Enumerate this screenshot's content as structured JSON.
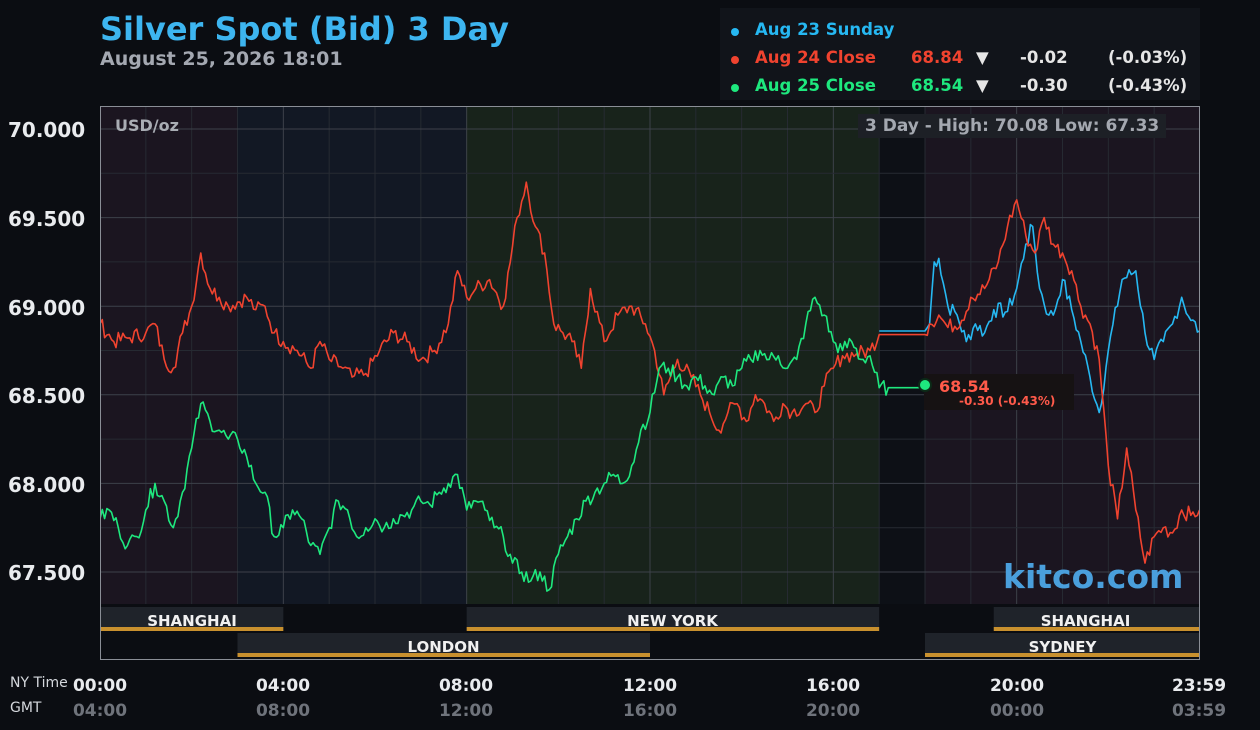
{
  "header": {
    "title": "Silver Spot (Bid) 3 Day",
    "datetime": "August 25, 2026 18:01"
  },
  "legend": [
    {
      "name": "Aug 23 Sunday",
      "price": "",
      "arrow": "",
      "change": "",
      "pct": "",
      "color": "#26b8f2"
    },
    {
      "name": "Aug 24 Close",
      "price": "68.84",
      "arrow": "▼",
      "change": "-0.02",
      "pct": "(-0.03%)",
      "color": "#f0432f"
    },
    {
      "name": "Aug 25 Close",
      "price": "68.54",
      "arrow": "▼",
      "change": "-0.30",
      "pct": "(-0.43%)",
      "color": "#1ee87e"
    }
  ],
  "plot": {
    "units": "USD/oz",
    "hilo": "3 Day - High: 70.08  Low: 67.33",
    "current_value": "68.54",
    "current_change": "-0.30 (-0.43%)",
    "watermark": "kitco.com"
  },
  "axes": {
    "y_ticks": [
      "70.000",
      "69.500",
      "69.000",
      "68.500",
      "68.000",
      "67.500"
    ],
    "x_ticks_ny": [
      "00:00",
      "04:00",
      "08:00",
      "12:00",
      "16:00",
      "20:00",
      "23:59"
    ],
    "x_ticks_gmt": [
      "04:00",
      "08:00",
      "12:00",
      "16:00",
      "20:00",
      "00:00",
      "03:59"
    ],
    "ny_label": "NY Time",
    "gmt_label": "GMT"
  },
  "sessions": [
    {
      "name": "SHANGHAI",
      "start": 0,
      "end": 4
    },
    {
      "name": "NEW YORK",
      "start": 8,
      "end": 17
    },
    {
      "name": "SHANGHAI",
      "start": 19.5,
      "end": 24
    },
    {
      "name": "LONDON",
      "start": 3,
      "end": 12
    },
    {
      "name": "SYDNEY",
      "start": 18,
      "end": 24
    }
  ],
  "colors": {
    "aug23": "#26b8f2",
    "aug24": "#f0432f",
    "aug25": "#1ee87e",
    "session_bar": "#c8902e"
  },
  "chart_data": {
    "type": "line",
    "title": "Silver Spot (Bid) 3 Day",
    "xlabel": "NY Time",
    "ylabel": "USD/oz",
    "xlim": [
      0,
      24
    ],
    "ylim": [
      67.32,
      70.08
    ],
    "series": [
      {
        "name": "Aug 23 Sunday",
        "points": [
          [
            17,
            68.86
          ],
          [
            18,
            68.86
          ],
          [
            18.1,
            68.9
          ],
          [
            18.2,
            69.25
          ],
          [
            18.3,
            69.27
          ],
          [
            18.5,
            69.0
          ],
          [
            18.7,
            68.95
          ],
          [
            18.9,
            68.8
          ],
          [
            19.1,
            68.9
          ],
          [
            19.3,
            68.85
          ],
          [
            19.5,
            68.98
          ],
          [
            19.8,
            68.97
          ],
          [
            20.0,
            69.1
          ],
          [
            20.2,
            69.35
          ],
          [
            20.35,
            69.45
          ],
          [
            20.5,
            69.1
          ],
          [
            20.7,
            68.95
          ],
          [
            20.8,
            68.95
          ],
          [
            21.0,
            69.15
          ],
          [
            21.2,
            68.98
          ],
          [
            21.4,
            68.8
          ],
          [
            21.6,
            68.6
          ],
          [
            21.8,
            68.4
          ],
          [
            22.0,
            68.75
          ],
          [
            22.3,
            69.15
          ],
          [
            22.6,
            69.2
          ],
          [
            22.8,
            68.85
          ],
          [
            23.0,
            68.7
          ],
          [
            23.2,
            68.8
          ],
          [
            23.4,
            68.9
          ],
          [
            23.6,
            69.05
          ],
          [
            23.8,
            68.92
          ],
          [
            23.99,
            68.86
          ]
        ]
      },
      {
        "name": "Aug 24 Close",
        "points": [
          [
            0,
            68.9
          ],
          [
            0.3,
            68.8
          ],
          [
            0.6,
            68.82
          ],
          [
            1.0,
            68.85
          ],
          [
            1.2,
            68.9
          ],
          [
            1.4,
            68.7
          ],
          [
            1.6,
            68.65
          ],
          [
            1.8,
            68.85
          ],
          [
            2.0,
            69.0
          ],
          [
            2.2,
            69.3
          ],
          [
            2.4,
            69.1
          ],
          [
            2.6,
            69.05
          ],
          [
            2.8,
            69.0
          ],
          [
            3.2,
            69.05
          ],
          [
            3.4,
            68.98
          ],
          [
            3.6,
            69.0
          ],
          [
            3.8,
            68.85
          ],
          [
            4.0,
            68.8
          ],
          [
            4.3,
            68.75
          ],
          [
            4.6,
            68.65
          ],
          [
            4.8,
            68.8
          ],
          [
            5.0,
            68.7
          ],
          [
            5.3,
            68.65
          ],
          [
            5.5,
            68.6
          ],
          [
            5.8,
            68.62
          ],
          [
            6.1,
            68.75
          ],
          [
            6.4,
            68.85
          ],
          [
            6.7,
            68.8
          ],
          [
            7.0,
            68.7
          ],
          [
            7.3,
            68.75
          ],
          [
            7.6,
            68.9
          ],
          [
            7.8,
            69.2
          ],
          [
            8.0,
            69.05
          ],
          [
            8.2,
            69.1
          ],
          [
            8.5,
            69.15
          ],
          [
            8.8,
            69.0
          ],
          [
            9.1,
            69.5
          ],
          [
            9.3,
            69.7
          ],
          [
            9.5,
            69.45
          ],
          [
            9.7,
            69.3
          ],
          [
            9.9,
            68.9
          ],
          [
            10.1,
            68.85
          ],
          [
            10.3,
            68.8
          ],
          [
            10.5,
            68.65
          ],
          [
            10.7,
            69.1
          ],
          [
            11.0,
            68.8
          ],
          [
            11.3,
            68.95
          ],
          [
            11.6,
            69.0
          ],
          [
            11.9,
            68.9
          ],
          [
            12.1,
            68.75
          ],
          [
            12.3,
            68.5
          ],
          [
            12.6,
            68.7
          ],
          [
            12.9,
            68.6
          ],
          [
            13.1,
            68.5
          ],
          [
            13.3,
            68.4
          ],
          [
            13.5,
            68.3
          ],
          [
            13.7,
            68.4
          ],
          [
            13.9,
            68.45
          ],
          [
            14.1,
            68.35
          ],
          [
            14.3,
            68.5
          ],
          [
            14.5,
            68.45
          ],
          [
            14.7,
            68.35
          ],
          [
            14.9,
            68.45
          ],
          [
            15.1,
            68.4
          ],
          [
            15.4,
            68.45
          ],
          [
            15.6,
            68.4
          ],
          [
            15.8,
            68.55
          ],
          [
            16.0,
            68.65
          ],
          [
            16.2,
            68.72
          ],
          [
            16.5,
            68.73
          ],
          [
            16.8,
            68.75
          ],
          [
            17.0,
            68.84
          ],
          [
            18.0,
            68.84
          ],
          [
            18.1,
            68.9
          ],
          [
            18.3,
            68.95
          ],
          [
            18.5,
            68.88
          ],
          [
            18.8,
            68.92
          ],
          [
            19.0,
            69.05
          ],
          [
            19.3,
            69.1
          ],
          [
            19.6,
            69.25
          ],
          [
            19.8,
            69.45
          ],
          [
            20.0,
            69.6
          ],
          [
            20.2,
            69.4
          ],
          [
            20.4,
            69.3
          ],
          [
            20.6,
            69.5
          ],
          [
            20.8,
            69.35
          ],
          [
            21.0,
            69.3
          ],
          [
            21.2,
            69.2
          ],
          [
            21.4,
            69.0
          ],
          [
            21.6,
            68.9
          ],
          [
            21.8,
            68.7
          ],
          [
            22.0,
            68.1
          ],
          [
            22.2,
            67.8
          ],
          [
            22.4,
            68.2
          ],
          [
            22.6,
            67.85
          ],
          [
            22.8,
            67.55
          ],
          [
            23.0,
            67.7
          ],
          [
            23.2,
            67.75
          ],
          [
            23.4,
            67.72
          ],
          [
            23.6,
            67.85
          ],
          [
            23.8,
            67.82
          ],
          [
            23.99,
            67.85
          ]
        ]
      },
      {
        "name": "Aug 25 Close",
        "points": [
          [
            0,
            67.8
          ],
          [
            0.2,
            67.85
          ],
          [
            0.4,
            67.75
          ],
          [
            0.6,
            67.65
          ],
          [
            0.8,
            67.7
          ],
          [
            1.0,
            67.85
          ],
          [
            1.2,
            68.0
          ],
          [
            1.4,
            67.9
          ],
          [
            1.6,
            67.75
          ],
          [
            1.8,
            67.95
          ],
          [
            2.0,
            68.2
          ],
          [
            2.2,
            68.45
          ],
          [
            2.4,
            68.35
          ],
          [
            2.6,
            68.3
          ],
          [
            2.8,
            68.25
          ],
          [
            3.0,
            68.25
          ],
          [
            3.2,
            68.15
          ],
          [
            3.4,
            68.0
          ],
          [
            3.6,
            67.95
          ],
          [
            3.8,
            67.7
          ],
          [
            4.0,
            67.75
          ],
          [
            4.2,
            67.85
          ],
          [
            4.4,
            67.8
          ],
          [
            4.6,
            67.65
          ],
          [
            4.8,
            67.6
          ],
          [
            5.0,
            67.75
          ],
          [
            5.2,
            67.9
          ],
          [
            5.4,
            67.85
          ],
          [
            5.6,
            67.7
          ],
          [
            5.8,
            67.75
          ],
          [
            6.0,
            67.8
          ],
          [
            6.2,
            67.75
          ],
          [
            6.4,
            67.8
          ],
          [
            6.6,
            67.82
          ],
          [
            6.8,
            67.85
          ],
          [
            7.0,
            67.9
          ],
          [
            7.2,
            67.88
          ],
          [
            7.4,
            67.95
          ],
          [
            7.6,
            68.0
          ],
          [
            7.8,
            68.05
          ],
          [
            8.0,
            67.85
          ],
          [
            8.2,
            67.9
          ],
          [
            8.4,
            67.85
          ],
          [
            8.6,
            67.75
          ],
          [
            8.8,
            67.7
          ],
          [
            9.0,
            67.55
          ],
          [
            9.2,
            67.5
          ],
          [
            9.4,
            67.45
          ],
          [
            9.6,
            67.5
          ],
          [
            9.8,
            67.4
          ],
          [
            10.0,
            67.6
          ],
          [
            10.2,
            67.7
          ],
          [
            10.4,
            67.8
          ],
          [
            10.6,
            67.9
          ],
          [
            10.8,
            67.95
          ],
          [
            11.0,
            68.0
          ],
          [
            11.2,
            68.05
          ],
          [
            11.4,
            68.0
          ],
          [
            11.6,
            68.1
          ],
          [
            11.8,
            68.3
          ],
          [
            12.0,
            68.4
          ],
          [
            12.2,
            68.65
          ],
          [
            12.4,
            68.65
          ],
          [
            12.6,
            68.6
          ],
          [
            12.8,
            68.55
          ],
          [
            13.0,
            68.6
          ],
          [
            13.2,
            68.55
          ],
          [
            13.4,
            68.5
          ],
          [
            13.6,
            68.6
          ],
          [
            13.8,
            68.55
          ],
          [
            14.0,
            68.65
          ],
          [
            14.2,
            68.7
          ],
          [
            14.4,
            68.75
          ],
          [
            14.6,
            68.7
          ],
          [
            14.8,
            68.72
          ],
          [
            15.0,
            68.65
          ],
          [
            15.2,
            68.7
          ],
          [
            15.4,
            68.9
          ],
          [
            15.6,
            69.05
          ],
          [
            15.8,
            68.95
          ],
          [
            16.0,
            68.8
          ],
          [
            16.2,
            68.75
          ],
          [
            16.4,
            68.8
          ],
          [
            16.6,
            68.7
          ],
          [
            16.8,
            68.72
          ],
          [
            17.0,
            68.54
          ],
          [
            17.2,
            68.54
          ],
          [
            18.0,
            68.54
          ]
        ]
      }
    ]
  }
}
